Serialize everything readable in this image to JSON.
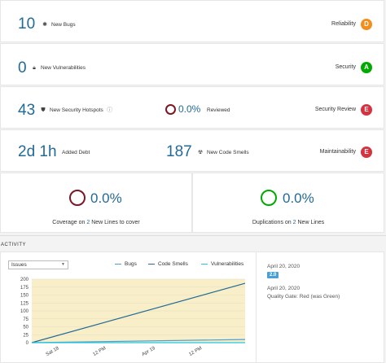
{
  "rows": {
    "reliability": {
      "value": "10",
      "label": "New Bugs",
      "rating_label": "Reliability",
      "grade": "D",
      "grade_color": "#f38e1c"
    },
    "security": {
      "value": "0",
      "label": "New Vulnerabilities",
      "rating_label": "Security",
      "grade": "A",
      "grade_color": "#00aa00"
    },
    "hotspots": {
      "value": "43",
      "label": "New Security Hotspots",
      "reviewed_pct": "0.0%",
      "reviewed_label": "Reviewed",
      "rating_label": "Security Review",
      "grade": "E",
      "grade_color": "#d4333f"
    },
    "maintainability": {
      "value": "2d 1h",
      "label": "Added Debt",
      "smells_value": "187",
      "smells_label": "New Code Smells",
      "rating_label": "Maintainability",
      "grade": "E",
      "grade_color": "#d4333f"
    }
  },
  "coverage": {
    "pct": "0.0%",
    "text_pre": "Coverage on",
    "count": "2",
    "text_post": "New Lines to cover"
  },
  "duplications": {
    "pct": "0.0%",
    "text_pre": "Duplications on",
    "count": "2",
    "text_post": "New Lines"
  },
  "activity": {
    "title": "ACTIVITY",
    "select_value": "Issues",
    "legend": [
      {
        "name": "Bugs",
        "color": "#4b9fd5",
        "style": "dashed"
      },
      {
        "name": "Code Smells",
        "color": "#236a97",
        "style": "solid"
      },
      {
        "name": "Vulnerabilities",
        "color": "#24c6e0",
        "style": "solid"
      }
    ],
    "side": {
      "date1": "April 20, 2020",
      "version": "2.0",
      "date2": "April 20, 2020",
      "quality_gate": "Quality Gate: Red (was Green)"
    }
  },
  "chart_data": {
    "type": "line",
    "x_labels": [
      "Sat 18",
      "12 PM",
      "Apr 19",
      "12 PM"
    ],
    "y_ticks": [
      0,
      25,
      50,
      75,
      100,
      125,
      150,
      175,
      200
    ],
    "ylim": [
      0,
      200
    ],
    "series": [
      {
        "name": "Bugs",
        "color": "#4b9fd5",
        "points": [
          [
            0,
            0
          ],
          [
            1,
            10
          ]
        ]
      },
      {
        "name": "Code Smells",
        "color": "#236a97",
        "points": [
          [
            0,
            0
          ],
          [
            1,
            187
          ]
        ]
      },
      {
        "name": "Vulnerabilities",
        "color": "#24c6e0",
        "points": [
          [
            0,
            0
          ],
          [
            1,
            0
          ]
        ]
      }
    ]
  }
}
